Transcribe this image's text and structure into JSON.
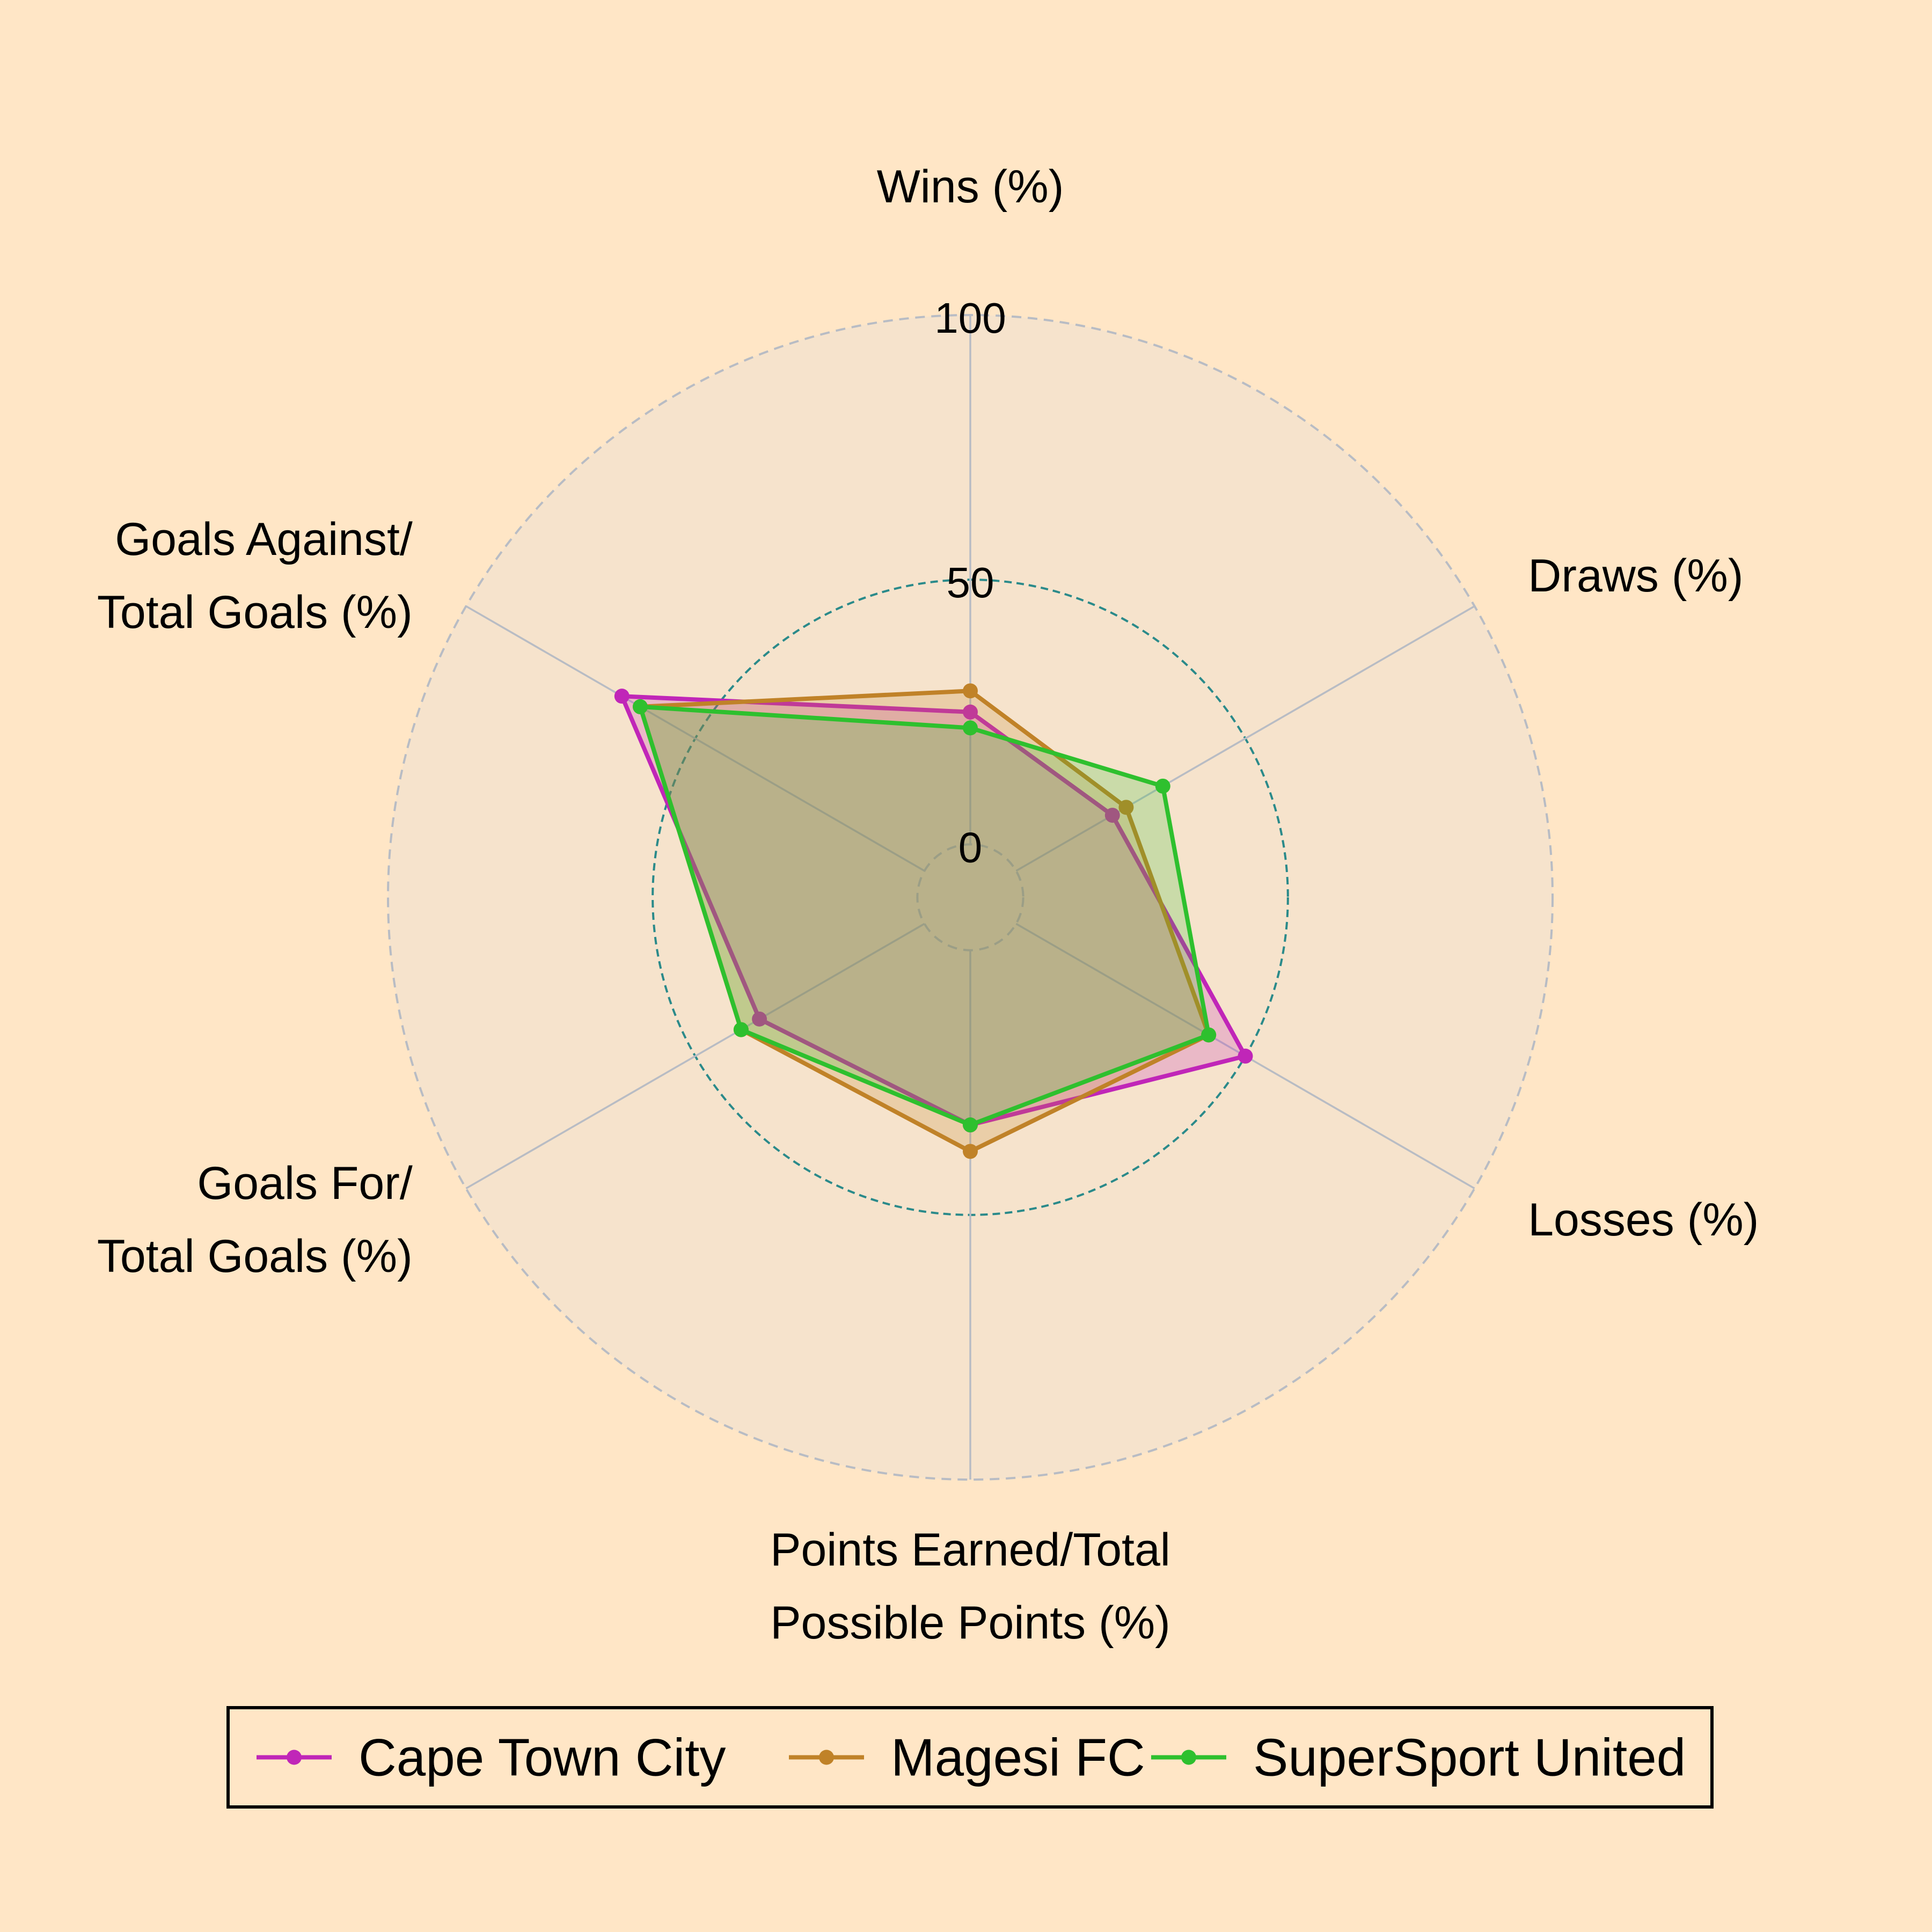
{
  "chart_data": {
    "type": "radar",
    "title": "",
    "axes": [
      [
        "Wins (%)"
      ],
      [
        "Draws (%)"
      ],
      [
        "Losses (%)"
      ],
      [
        "Points Earned/Total",
        "Possible Points (%)"
      ],
      [
        "Goals For/",
        "Total Goals (%)"
      ],
      [
        "Goals Against/",
        "Total Goals (%)"
      ]
    ],
    "rmin": -10,
    "rmax": 100,
    "ticks": [
      0,
      50,
      100
    ],
    "highlight_ring": 50,
    "grid": true,
    "legend_position": "bottom",
    "series": [
      {
        "name": "Cape Town City",
        "color": "#c026b8",
        "values": [
          25,
          21,
          50,
          33,
          36,
          66
        ]
      },
      {
        "name": "Magesi FC",
        "color": "#c08228",
        "values": [
          29,
          24,
          42,
          38,
          40,
          62
        ]
      },
      {
        "name": "SuperSport United",
        "color": "#2ec02e",
        "values": [
          22,
          32,
          42,
          33,
          40,
          62
        ]
      }
    ],
    "colors": {
      "background": "#ffe6c6",
      "plot_background": "#f6e3cc",
      "grid": "#b8bcc4",
      "highlight_ring": "#2a8a8a"
    }
  }
}
